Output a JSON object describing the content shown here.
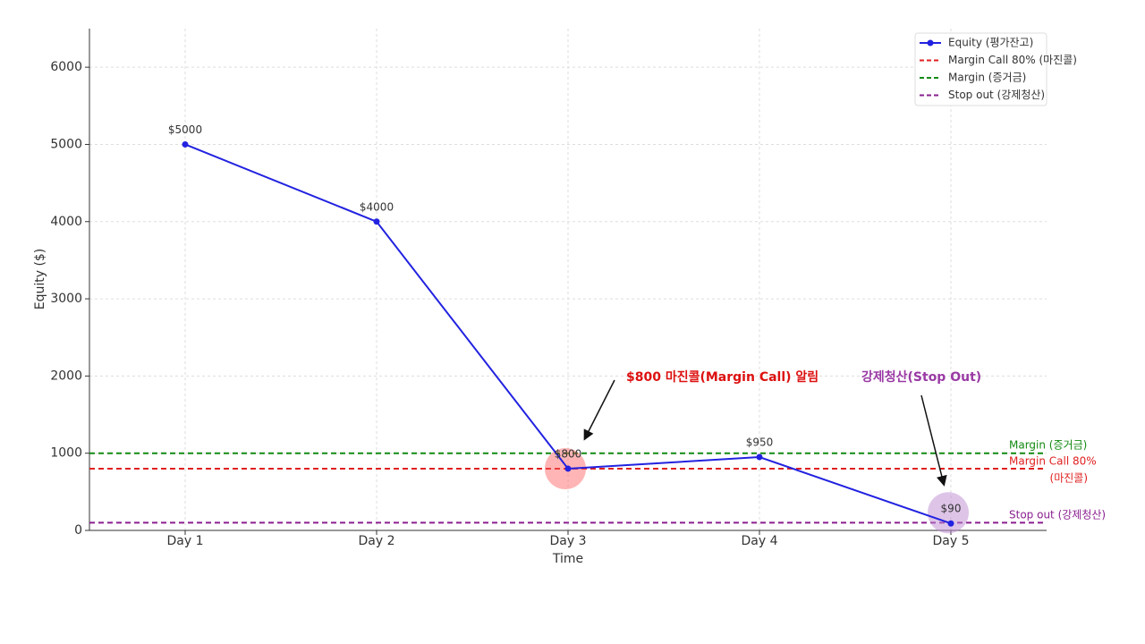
{
  "chart_data": {
    "type": "line",
    "xlabel": "Time",
    "ylabel": "Equity ($)",
    "categories": [
      "Day 1",
      "Day 2",
      "Day 3",
      "Day 4",
      "Day 5"
    ],
    "series": [
      {
        "name": "Equity (평가잔고)",
        "color": "#2222e0",
        "values": [
          5000,
          4000,
          800,
          950,
          90
        ],
        "value_labels": [
          "$5000",
          "$4000",
          "$800",
          "$950",
          "$90"
        ]
      }
    ],
    "reference_lines": [
      {
        "name": "Margin Call 80% (마진콜)",
        "value": 800,
        "color": "#e02020",
        "label_lines": [
          "Margin Call 80%",
          "(마진콜)"
        ]
      },
      {
        "name": "Margin (증거금)",
        "value": 1000,
        "color": "#138a13",
        "label_lines": [
          "Margin (증거금)"
        ]
      },
      {
        "name": "Stop out (강제청산)",
        "value": 100,
        "color": "#8a1f8f",
        "label_lines": [
          "Stop out (강제청산)"
        ]
      }
    ],
    "annotations": [
      {
        "text": "$800 마진콜(Margin Call) 알림",
        "color": "#dd1111"
      },
      {
        "text": "강제청산(Stop Out)",
        "color": "#9a3aa5"
      }
    ],
    "ylim": [
      0,
      6500
    ],
    "yticks": [
      0,
      1000,
      2000,
      3000,
      4000,
      5000,
      6000
    ],
    "grid": true,
    "legend": "upper right"
  }
}
